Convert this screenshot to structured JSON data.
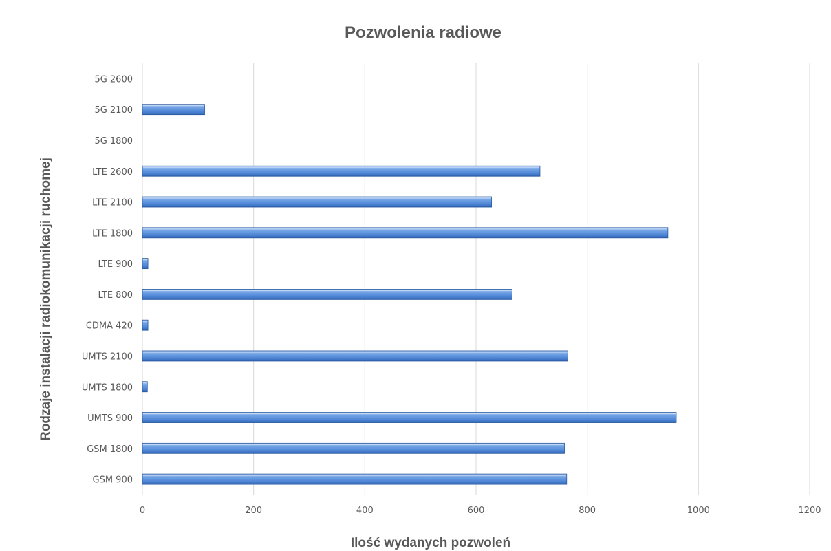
{
  "chart_data": {
    "type": "bar",
    "orientation": "horizontal",
    "title": "Pozwolenia radiowe",
    "xlabel": "Ilość wydanych pozwoleń",
    "ylabel": "Rodzaje instalacji radiokomunikacji ruchomej",
    "xlim": [
      0,
      1200
    ],
    "xticks": [
      "0",
      "200",
      "400",
      "600",
      "800",
      "1000",
      "1200"
    ],
    "categories": [
      "5G 2600",
      "5G 2100",
      "5G 1800",
      "LTE 2600",
      "LTE 2100",
      "LTE 1800",
      "LTE 900",
      "LTE 800",
      "CDMA 420",
      "UMTS 2100",
      "UMTS 1800",
      "UMTS 900",
      "GSM 1800",
      "GSM 900"
    ],
    "values": [
      0,
      112,
      0,
      715,
      628,
      945,
      10,
      665,
      10,
      765,
      9,
      960,
      759,
      763
    ],
    "grid": "vertical",
    "legend": "none",
    "bar_color": "#4f86d4"
  }
}
